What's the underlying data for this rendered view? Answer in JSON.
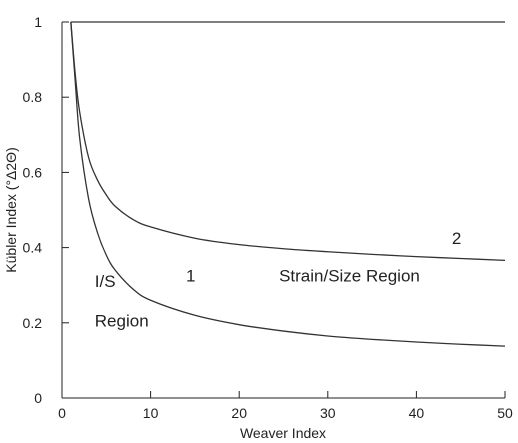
{
  "chart_data": {
    "type": "line",
    "xlabel": "Weaver Index",
    "ylabel": "Kübler Index (°Δ2Θ)",
    "xlim": [
      0,
      50
    ],
    "ylim": [
      0,
      1
    ],
    "xticks": [
      "0",
      "10",
      "20",
      "30",
      "40",
      "50"
    ],
    "yticks": [
      "0",
      "0.2",
      "0.4",
      "0.6",
      "0.8",
      "1"
    ],
    "grid": false,
    "series": [
      {
        "name": "1",
        "x": [
          1.0,
          1.5,
          2,
          3,
          4,
          5,
          6,
          8,
          10,
          15,
          20,
          25,
          30,
          35,
          40,
          45,
          50
        ],
        "y": [
          1.0,
          0.84,
          0.69,
          0.53,
          0.44,
          0.38,
          0.34,
          0.29,
          0.26,
          0.22,
          0.195,
          0.178,
          0.165,
          0.156,
          0.149,
          0.143,
          0.138
        ]
      },
      {
        "name": "2",
        "x": [
          1.0,
          1.5,
          2,
          3,
          4,
          5,
          6,
          8,
          10,
          15,
          20,
          25,
          30,
          35,
          40,
          45,
          50
        ],
        "y": [
          1.0,
          0.86,
          0.76,
          0.64,
          0.58,
          0.54,
          0.51,
          0.475,
          0.455,
          0.425,
          0.408,
          0.397,
          0.389,
          0.382,
          0.376,
          0.371,
          0.366
        ]
      },
      {
        "name": "",
        "x": [
          1.0,
          10,
          20,
          30,
          40,
          50
        ],
        "y": [
          1.0,
          1.0,
          1.0,
          1.0,
          1.0,
          1.0
        ]
      }
    ],
    "annotations": [
      {
        "text": "1",
        "x": 14,
        "y": 0.31
      },
      {
        "text": "2",
        "x": 44,
        "y": 0.41
      },
      {
        "text": "I/S",
        "x": 3.7,
        "y": 0.295
      },
      {
        "text": "Region",
        "x": 3.7,
        "y": 0.19
      },
      {
        "text": "Strain/Size Region",
        "x": 24.5,
        "y": 0.31
      }
    ]
  }
}
